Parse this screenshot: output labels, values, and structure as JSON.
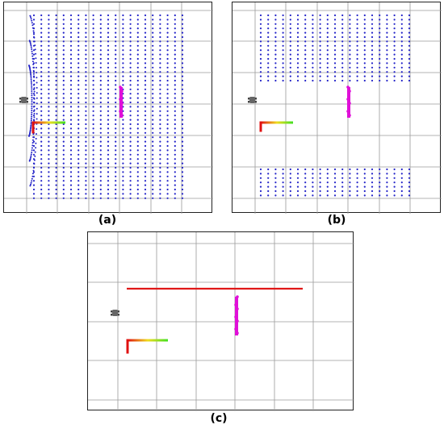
{
  "captions": {
    "a": "(a)",
    "b": "(b)",
    "c": "(c)"
  },
  "colors": {
    "grid": "#9a9a9a",
    "scan_points": "#2323c8",
    "obstacle": "#e010d8",
    "laser_line": "#e01818",
    "robot": "#666666",
    "axis_start": "#e01010",
    "axis_end": "#40e020"
  },
  "icons": {
    "robot": "robot-icon",
    "pose_axis": "pose-axis-icon"
  }
}
